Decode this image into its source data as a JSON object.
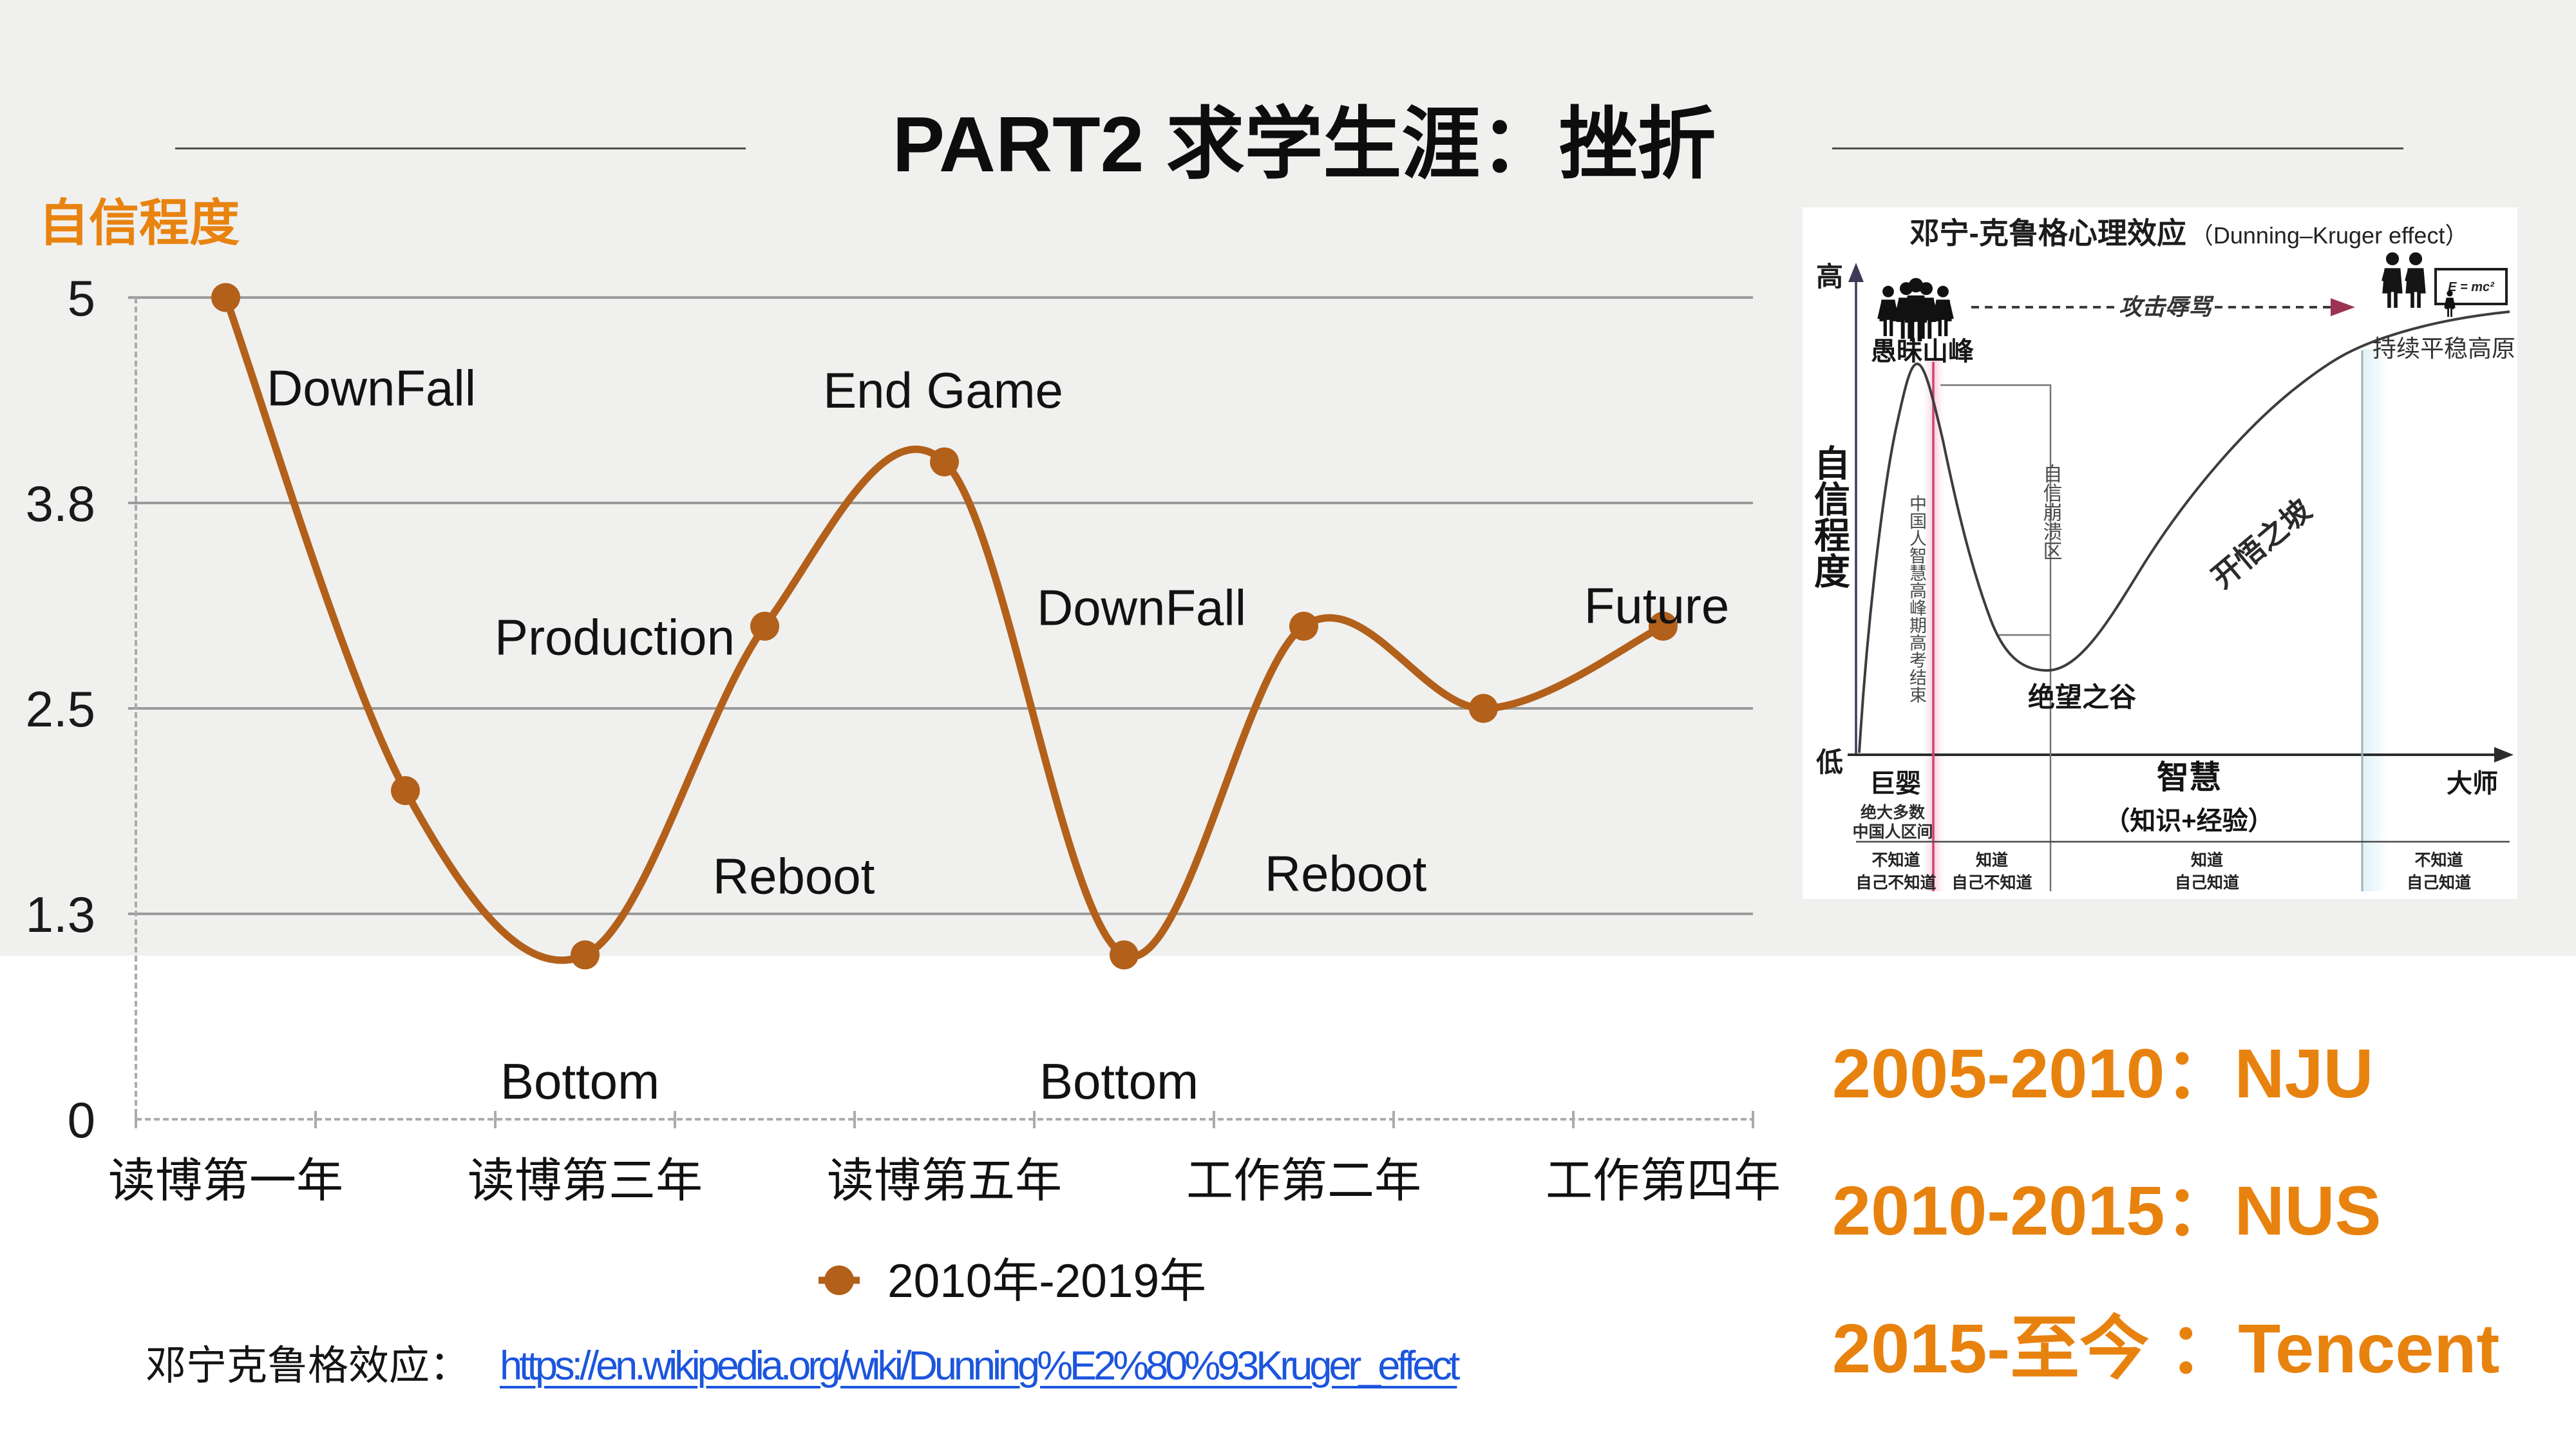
{
  "slide": {
    "title": "PART2 求学生涯：挫折",
    "background_top_color": "#f0f0ef",
    "background_bottom_color": "#ffffff"
  },
  "chart_data": {
    "type": "line",
    "title": "自信程度",
    "series": [
      {
        "name": "2010年-2019年",
        "values": [
          5,
          2,
          1,
          3,
          4,
          1,
          3,
          2.5,
          3
        ]
      }
    ],
    "categories": [
      "读博第一年",
      "读博第三年",
      "读博第五年",
      "工作第二年",
      "工作第四年"
    ],
    "category_point_indexes": [
      0,
      2,
      4,
      6,
      8
    ],
    "ylabel": "自信程度",
    "ylim": [
      0,
      5
    ],
    "yticks": [
      {
        "label": "0",
        "value": 0
      },
      {
        "label": "1.3",
        "value": 1.25
      },
      {
        "label": "2.5",
        "value": 2.5
      },
      {
        "label": "3.8",
        "value": 3.75
      },
      {
        "label": "5",
        "value": 5
      }
    ],
    "grid": "horizontal",
    "legend_position": "bottom",
    "line_color": "#b2601a",
    "annotations": [
      {
        "text": "DownFall",
        "point": 1
      },
      {
        "text": "Production",
        "point": 3
      },
      {
        "text": "End Game",
        "point": 4
      },
      {
        "text": "DownFall",
        "point": 6
      },
      {
        "text": "Reboot",
        "point": 3
      },
      {
        "text": "Reboot",
        "point": 6
      },
      {
        "text": "Bottom",
        "point": 2
      },
      {
        "text": "Bottom",
        "point": 5
      },
      {
        "text": "Future",
        "point": 8
      }
    ]
  },
  "legend": {
    "label": "2010年-2019年"
  },
  "source": {
    "label": "邓宁克鲁格效应：",
    "link_text": "https://en.wikipedia.org/wiki/Dunning%E2%80%93Kruger_effect",
    "link_color": "#1c55dd"
  },
  "timeline": {
    "color": "#e8820e",
    "items": [
      "2005-2010：NJU",
      "2010-2015：NUS",
      "2015-至今 ：Tencent"
    ]
  },
  "inset": {
    "title_cn": "邓宁-克鲁格心理效应",
    "title_en": "（Dunning–Kruger effect）",
    "y_high": "高",
    "y_low": "低",
    "y_axis_label": "自信程度",
    "peak_label": "愚昧山峰",
    "valley_label": "绝望之谷",
    "slope_label": "开悟之坡",
    "plateau_label": "持续平稳高原",
    "attack_label": "攻击辱骂",
    "crash_zone_label": "自信崩溃区",
    "exam_note": "中国人智慧高峰期高考结束",
    "formula": "E = mc²",
    "region_baby": "巨婴",
    "region_baby_note1": "绝大多数",
    "region_baby_note2": "中国人区间",
    "region_wisdom": "智慧",
    "region_wisdom_sub": "（知识+经验）",
    "region_master": "大师",
    "row_col1_line1": "不知道",
    "row_col1_line2": "自己不知道",
    "row_col2_line1": "知道",
    "row_col2_line2": "自己不知道",
    "row_col3_line1": "知道",
    "row_col3_line2": "自己知道",
    "row_col4_line1": "不知道",
    "row_col4_line2": "自己知道"
  }
}
